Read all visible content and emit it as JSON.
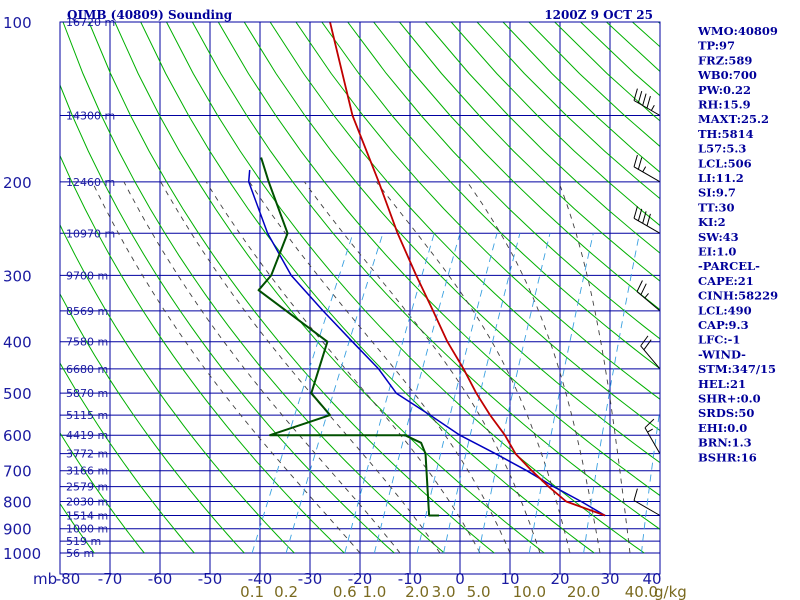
{
  "header": {
    "title": "QIMB (40809) Sounding",
    "datetime": "1200Z  9 OCT 25"
  },
  "indices": [
    "WMO:40809",
    "TP:97",
    "FRZ:589",
    "WB0:700",
    "PW:0.22",
    "RH:15.9",
    "MAXT:25.2",
    "TH:5814",
    "L57:5.3",
    "LCL:506",
    "LI:11.2",
    "SI:9.7",
    "TT:30",
    "KI:2",
    "SW:43",
    "EI:1.0",
    "-PARCEL-",
    "CAPE:21",
    "CINH:58229",
    "LCL:490",
    "CAP:9.3",
    "LFC:-1",
    "-WIND-",
    "STM:347/15",
    "HEL:21",
    "SHR+:0.0",
    "SRDS:50",
    "EHI:0.0",
    "BRN:1.3",
    "BSHR:16"
  ],
  "colors": {
    "grid": "#0000a0",
    "dry_adiabat": "#00b000",
    "moist_adiabat": "#404040",
    "mixing_ratio": "#3aa0e0",
    "temperature": "#c00000",
    "dewpoint": "#005000",
    "parcel": "#0000c0",
    "labels": "#1a1aa0",
    "mixing_labels": "#7a6a20"
  },
  "chart_data": {
    "type": "line",
    "title": "QIMB (40809) Sounding",
    "pressure_unit": "mb",
    "mixing_ratio_unit": "g/kg",
    "pressure_levels": [
      100,
      200,
      300,
      400,
      500,
      600,
      700,
      800,
      900,
      1000
    ],
    "height_labels": [
      {
        "p": 100,
        "text": "16720 m"
      },
      {
        "p": 150,
        "text": "14300 m"
      },
      {
        "p": 200,
        "text": "12460 m"
      },
      {
        "p": 250,
        "text": "10970 m"
      },
      {
        "p": 300,
        "text": "9700 m"
      },
      {
        "p": 350,
        "text": "8569 m"
      },
      {
        "p": 400,
        "text": "7580 m"
      },
      {
        "p": 450,
        "text": "6680 m"
      },
      {
        "p": 500,
        "text": "5870 m"
      },
      {
        "p": 550,
        "text": "5115 m"
      },
      {
        "p": 600,
        "text": "4419 m"
      },
      {
        "p": 650,
        "text": "3772 m"
      },
      {
        "p": 700,
        "text": "3166 m"
      },
      {
        "p": 750,
        "text": "2579 m"
      },
      {
        "p": 800,
        "text": "2030 m"
      },
      {
        "p": 850,
        "text": "1514 m"
      },
      {
        "p": 900,
        "text": "1000 m"
      },
      {
        "p": 950,
        "text": "519 m"
      },
      {
        "p": 1000,
        "text": "56 m"
      }
    ],
    "temperature_ticks": [
      -80,
      -70,
      -60,
      -50,
      -40,
      -30,
      -20,
      -10,
      0,
      10,
      20,
      30,
      40
    ],
    "mixing_ratio_labels": [
      {
        "w": 0.1,
        "text": "0.1"
      },
      {
        "w": 0.2,
        "text": "0.2"
      },
      {
        "w": 0.6,
        "text": "0.6"
      },
      {
        "w": 1.0,
        "text": "1.0"
      },
      {
        "w": 2.0,
        "text": "2.0"
      },
      {
        "w": 3.0,
        "text": "3.0"
      },
      {
        "w": 5.0,
        "text": "5.0"
      },
      {
        "w": 10,
        "text": "10.0"
      },
      {
        "w": 20,
        "text": "20.0"
      },
      {
        "w": 40,
        "text": "40.0"
      }
    ],
    "series": [
      {
        "key": "temperature",
        "points": [
          {
            "p": 100,
            "t": -80
          },
          {
            "p": 150,
            "t": -66
          },
          {
            "p": 200,
            "t": -54
          },
          {
            "p": 250,
            "t": -45
          },
          {
            "p": 300,
            "t": -37
          },
          {
            "p": 350,
            "t": -30
          },
          {
            "p": 400,
            "t": -24
          },
          {
            "p": 450,
            "t": -18
          },
          {
            "p": 500,
            "t": -13
          },
          {
            "p": 550,
            "t": -8
          },
          {
            "p": 600,
            "t": -3
          },
          {
            "p": 650,
            "t": 1
          },
          {
            "p": 700,
            "t": 6
          },
          {
            "p": 750,
            "t": 11
          },
          {
            "p": 800,
            "t": 16
          },
          {
            "p": 850,
            "t": 25.2
          }
        ]
      },
      {
        "key": "dewpoint",
        "points": [
          {
            "p": 180,
            "t": -80
          },
          {
            "p": 200,
            "t": -76
          },
          {
            "p": 250,
            "t": -67
          },
          {
            "p": 300,
            "t": -66
          },
          {
            "p": 320,
            "t": -67
          },
          {
            "p": 400,
            "t": -48
          },
          {
            "p": 500,
            "t": -46
          },
          {
            "p": 550,
            "t": -40
          },
          {
            "p": 600,
            "t": -50
          },
          {
            "p": 600,
            "t": -23
          },
          {
            "p": 620,
            "t": -19
          },
          {
            "p": 650,
            "t": -17
          },
          {
            "p": 850,
            "t": -10
          },
          {
            "p": 850,
            "t": -8
          }
        ]
      },
      {
        "key": "parcel",
        "points": [
          {
            "p": 190,
            "t": -81
          },
          {
            "p": 200,
            "t": -80
          },
          {
            "p": 250,
            "t": -71
          },
          {
            "p": 300,
            "t": -62
          },
          {
            "p": 350,
            "t": -52
          },
          {
            "p": 400,
            "t": -43
          },
          {
            "p": 450,
            "t": -35
          },
          {
            "p": 500,
            "t": -29
          },
          {
            "p": 550,
            "t": -20
          },
          {
            "p": 600,
            "t": -12
          },
          {
            "p": 650,
            "t": -3
          },
          {
            "p": 700,
            "t": 5
          },
          {
            "p": 750,
            "t": 12
          },
          {
            "p": 800,
            "t": 19
          },
          {
            "p": 850,
            "t": 25.2
          }
        ]
      }
    ],
    "winds": [
      {
        "p": 150,
        "dir": 300,
        "spd": 45
      },
      {
        "p": 200,
        "dir": 300,
        "spd": 25
      },
      {
        "p": 250,
        "dir": 300,
        "spd": 40
      },
      {
        "p": 350,
        "dir": 310,
        "spd": 25
      },
      {
        "p": 450,
        "dir": 320,
        "spd": 20
      },
      {
        "p": 650,
        "dir": 330,
        "spd": 15
      },
      {
        "p": 850,
        "dir": 300,
        "spd": 10
      }
    ]
  }
}
